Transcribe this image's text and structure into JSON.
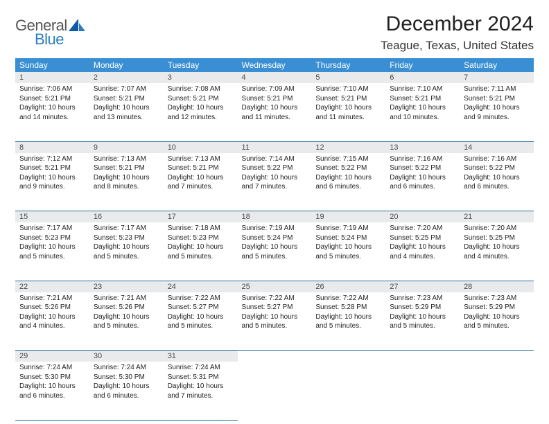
{
  "logo": {
    "word1": "General",
    "word2": "Blue"
  },
  "title": "December 2024",
  "location": "Teague, Texas, United States",
  "colors": {
    "header_bg": "#3a8fd4",
    "header_text": "#ffffff",
    "daynum_bg": "#e9eaec",
    "daynum_text": "#4a4a4a",
    "row_border": "#2b6aa3",
    "logo_gray": "#555555",
    "logo_blue": "#2b7cc2"
  },
  "weekdays": [
    "Sunday",
    "Monday",
    "Tuesday",
    "Wednesday",
    "Thursday",
    "Friday",
    "Saturday"
  ],
  "weeks": [
    [
      {
        "n": "1",
        "sr": "Sunrise: 7:06 AM",
        "ss": "Sunset: 5:21 PM",
        "dl": "Daylight: 10 hours and 14 minutes."
      },
      {
        "n": "2",
        "sr": "Sunrise: 7:07 AM",
        "ss": "Sunset: 5:21 PM",
        "dl": "Daylight: 10 hours and 13 minutes."
      },
      {
        "n": "3",
        "sr": "Sunrise: 7:08 AM",
        "ss": "Sunset: 5:21 PM",
        "dl": "Daylight: 10 hours and 12 minutes."
      },
      {
        "n": "4",
        "sr": "Sunrise: 7:09 AM",
        "ss": "Sunset: 5:21 PM",
        "dl": "Daylight: 10 hours and 11 minutes."
      },
      {
        "n": "5",
        "sr": "Sunrise: 7:10 AM",
        "ss": "Sunset: 5:21 PM",
        "dl": "Daylight: 10 hours and 11 minutes."
      },
      {
        "n": "6",
        "sr": "Sunrise: 7:10 AM",
        "ss": "Sunset: 5:21 PM",
        "dl": "Daylight: 10 hours and 10 minutes."
      },
      {
        "n": "7",
        "sr": "Sunrise: 7:11 AM",
        "ss": "Sunset: 5:21 PM",
        "dl": "Daylight: 10 hours and 9 minutes."
      }
    ],
    [
      {
        "n": "8",
        "sr": "Sunrise: 7:12 AM",
        "ss": "Sunset: 5:21 PM",
        "dl": "Daylight: 10 hours and 9 minutes."
      },
      {
        "n": "9",
        "sr": "Sunrise: 7:13 AM",
        "ss": "Sunset: 5:21 PM",
        "dl": "Daylight: 10 hours and 8 minutes."
      },
      {
        "n": "10",
        "sr": "Sunrise: 7:13 AM",
        "ss": "Sunset: 5:21 PM",
        "dl": "Daylight: 10 hours and 7 minutes."
      },
      {
        "n": "11",
        "sr": "Sunrise: 7:14 AM",
        "ss": "Sunset: 5:22 PM",
        "dl": "Daylight: 10 hours and 7 minutes."
      },
      {
        "n": "12",
        "sr": "Sunrise: 7:15 AM",
        "ss": "Sunset: 5:22 PM",
        "dl": "Daylight: 10 hours and 6 minutes."
      },
      {
        "n": "13",
        "sr": "Sunrise: 7:16 AM",
        "ss": "Sunset: 5:22 PM",
        "dl": "Daylight: 10 hours and 6 minutes."
      },
      {
        "n": "14",
        "sr": "Sunrise: 7:16 AM",
        "ss": "Sunset: 5:22 PM",
        "dl": "Daylight: 10 hours and 6 minutes."
      }
    ],
    [
      {
        "n": "15",
        "sr": "Sunrise: 7:17 AM",
        "ss": "Sunset: 5:23 PM",
        "dl": "Daylight: 10 hours and 5 minutes."
      },
      {
        "n": "16",
        "sr": "Sunrise: 7:17 AM",
        "ss": "Sunset: 5:23 PM",
        "dl": "Daylight: 10 hours and 5 minutes."
      },
      {
        "n": "17",
        "sr": "Sunrise: 7:18 AM",
        "ss": "Sunset: 5:23 PM",
        "dl": "Daylight: 10 hours and 5 minutes."
      },
      {
        "n": "18",
        "sr": "Sunrise: 7:19 AM",
        "ss": "Sunset: 5:24 PM",
        "dl": "Daylight: 10 hours and 5 minutes."
      },
      {
        "n": "19",
        "sr": "Sunrise: 7:19 AM",
        "ss": "Sunset: 5:24 PM",
        "dl": "Daylight: 10 hours and 5 minutes."
      },
      {
        "n": "20",
        "sr": "Sunrise: 7:20 AM",
        "ss": "Sunset: 5:25 PM",
        "dl": "Daylight: 10 hours and 4 minutes."
      },
      {
        "n": "21",
        "sr": "Sunrise: 7:20 AM",
        "ss": "Sunset: 5:25 PM",
        "dl": "Daylight: 10 hours and 4 minutes."
      }
    ],
    [
      {
        "n": "22",
        "sr": "Sunrise: 7:21 AM",
        "ss": "Sunset: 5:26 PM",
        "dl": "Daylight: 10 hours and 4 minutes."
      },
      {
        "n": "23",
        "sr": "Sunrise: 7:21 AM",
        "ss": "Sunset: 5:26 PM",
        "dl": "Daylight: 10 hours and 5 minutes."
      },
      {
        "n": "24",
        "sr": "Sunrise: 7:22 AM",
        "ss": "Sunset: 5:27 PM",
        "dl": "Daylight: 10 hours and 5 minutes."
      },
      {
        "n": "25",
        "sr": "Sunrise: 7:22 AM",
        "ss": "Sunset: 5:27 PM",
        "dl": "Daylight: 10 hours and 5 minutes."
      },
      {
        "n": "26",
        "sr": "Sunrise: 7:22 AM",
        "ss": "Sunset: 5:28 PM",
        "dl": "Daylight: 10 hours and 5 minutes."
      },
      {
        "n": "27",
        "sr": "Sunrise: 7:23 AM",
        "ss": "Sunset: 5:29 PM",
        "dl": "Daylight: 10 hours and 5 minutes."
      },
      {
        "n": "28",
        "sr": "Sunrise: 7:23 AM",
        "ss": "Sunset: 5:29 PM",
        "dl": "Daylight: 10 hours and 5 minutes."
      }
    ],
    [
      {
        "n": "29",
        "sr": "Sunrise: 7:24 AM",
        "ss": "Sunset: 5:30 PM",
        "dl": "Daylight: 10 hours and 6 minutes."
      },
      {
        "n": "30",
        "sr": "Sunrise: 7:24 AM",
        "ss": "Sunset: 5:30 PM",
        "dl": "Daylight: 10 hours and 6 minutes."
      },
      {
        "n": "31",
        "sr": "Sunrise: 7:24 AM",
        "ss": "Sunset: 5:31 PM",
        "dl": "Daylight: 10 hours and 7 minutes."
      },
      null,
      null,
      null,
      null
    ]
  ]
}
